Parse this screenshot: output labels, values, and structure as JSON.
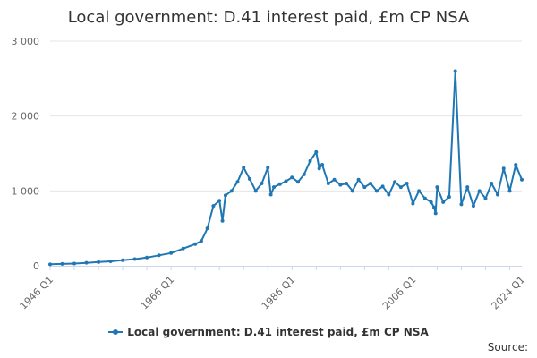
{
  "colors": {
    "series": "#1f77b4",
    "grid": "#e6e6e6",
    "axis": "#ccd6eb",
    "text": "#666666"
  },
  "source_label": "Source:",
  "chart_data": {
    "type": "line",
    "title": "Local government: D.41 interest paid, £m CP NSA",
    "xlabel": "",
    "ylabel": "",
    "x_tick_labels": [
      "1946 Q1",
      "1966 Q1",
      "1986 Q1",
      "2006 Q1",
      "2024 Q1"
    ],
    "x_tick_years": [
      1946,
      1966,
      1986,
      2006,
      2024
    ],
    "y_tick_labels": [
      "0",
      "1 000",
      "2 000",
      "3 000"
    ],
    "y_tick_values": [
      0,
      1000,
      2000,
      3000
    ],
    "xlim": [
      1946,
      2024
    ],
    "ylim": [
      0,
      3000
    ],
    "grid": true,
    "legend_position": "bottom",
    "series": [
      {
        "name": "Local government: D.41 interest paid, £m CP NSA",
        "x": [
          1946,
          1948,
          1950,
          1952,
          1954,
          1956,
          1958,
          1960,
          1962,
          1964,
          1966,
          1968,
          1970,
          1971,
          1972,
          1973,
          1974,
          1974.5,
          1975,
          1976,
          1977,
          1978,
          1979,
          1980,
          1981,
          1982,
          1982.5,
          1983,
          1984,
          1985,
          1986,
          1987,
          1988,
          1989,
          1990,
          1990.5,
          1991,
          1992,
          1993,
          1994,
          1995,
          1996,
          1997,
          1998,
          1999,
          2000,
          2001,
          2002,
          2003,
          2004,
          2005,
          2006,
          2007,
          2008,
          2009,
          2009.5,
          2009.75,
          2010,
          2011,
          2012,
          2013,
          2014,
          2015,
          2016,
          2017,
          2018,
          2019,
          2020,
          2021,
          2022,
          2023,
          2024
        ],
        "y": [
          20,
          25,
          30,
          40,
          50,
          60,
          75,
          90,
          110,
          140,
          170,
          230,
          290,
          330,
          500,
          800,
          870,
          600,
          940,
          1000,
          1120,
          1310,
          1160,
          1000,
          1100,
          1310,
          950,
          1050,
          1090,
          1130,
          1180,
          1120,
          1220,
          1400,
          1520,
          1300,
          1350,
          1100,
          1150,
          1080,
          1100,
          1000,
          1150,
          1050,
          1100,
          1000,
          1060,
          950,
          1120,
          1050,
          1100,
          830,
          1000,
          900,
          850,
          780,
          700,
          1050,
          850,
          920,
          2600,
          820,
          1050,
          800,
          1000,
          900,
          1100,
          950,
          1300,
          1000,
          1350,
          1150
        ]
      }
    ]
  }
}
